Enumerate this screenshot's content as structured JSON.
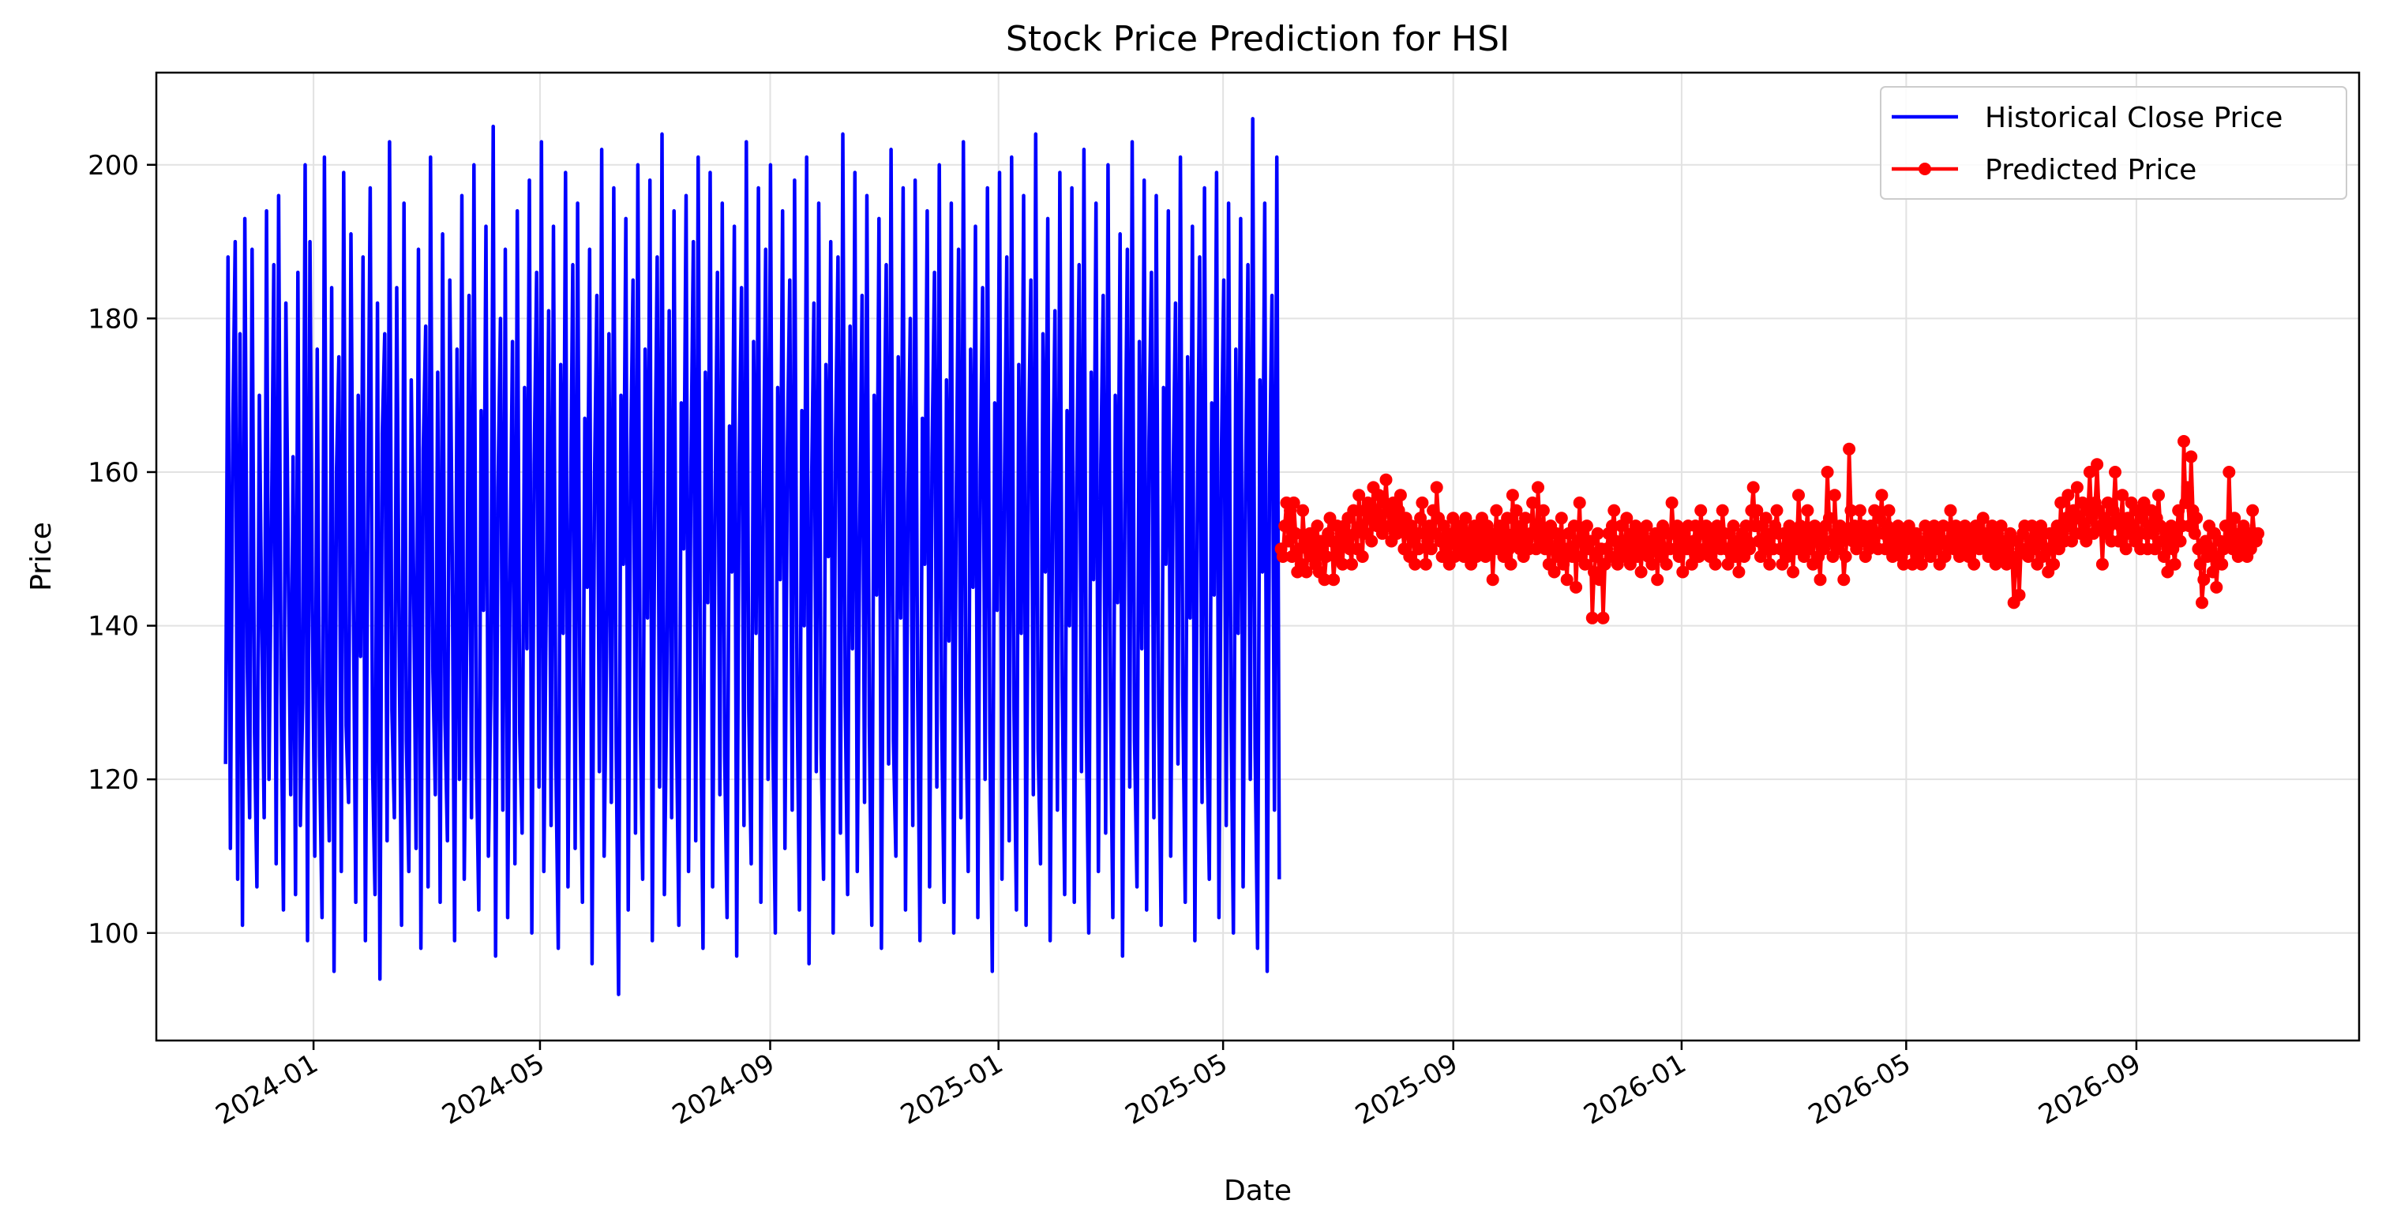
{
  "chart_data": {
    "type": "line",
    "title": "Stock Price Prediction for HSI",
    "xlabel": "Date",
    "ylabel": "Price",
    "xlim": [
      "2023-10-09",
      "2026-12-29"
    ],
    "ylim": [
      86,
      212
    ],
    "grid": true,
    "legend": {
      "placement": "top-right",
      "entries": [
        "Historical Close Price",
        "Predicted Price"
      ]
    },
    "x_ticks": [
      "2024-01",
      "2024-05",
      "2024-09",
      "2025-01",
      "2025-05",
      "2025-09",
      "2026-01",
      "2026-05",
      "2026-09"
    ],
    "x_tick_dates": [
      "2024-01-01",
      "2024-05-01",
      "2024-09-01",
      "2025-01-01",
      "2025-05-01",
      "2025-09-01",
      "2026-01-01",
      "2026-05-01",
      "2026-09-01"
    ],
    "y_ticks": [
      100,
      120,
      140,
      160,
      180,
      200
    ],
    "series": [
      {
        "name": "Historical Close Price",
        "color": "#0000ff",
        "marker": "none",
        "start": "2023-11-15",
        "end": "2025-05-31",
        "frequency": "daily",
        "range": [
          92,
          206
        ],
        "values": [
          122,
          188,
          111,
          166,
          190,
          107,
          178,
          101,
          193,
          135,
          115,
          189,
          126,
          106,
          170,
          140,
          115,
          194,
          120,
          151,
          187,
          109,
          196,
          133,
          103,
          182,
          148,
          118,
          162,
          105,
          186,
          114,
          130,
          200,
          99,
          190,
          142,
          110,
          176,
          123,
          102,
          201,
          131,
          112,
          184,
          95,
          160,
          175,
          108,
          199,
          127,
          117,
          191,
          143,
          104,
          170,
          136,
          188,
          99,
          155,
          197,
          121,
          105,
          182,
          94,
          165,
          178,
          112,
          203,
          129,
          115,
          184,
          138,
          101,
          195,
          125,
          108,
          172,
          146,
          111,
          189,
          98,
          163,
          179,
          106,
          201,
          134,
          118,
          173,
          104,
          191,
          128,
          112,
          185,
          149,
          99,
          176,
          120,
          196,
          107,
          138,
          183,
          115,
          200,
          124,
          103,
          168,
          142,
          192,
          110,
          131,
          205,
          97,
          158,
          180,
          116,
          189,
          102,
          147,
          177,
          109,
          194,
          126,
          113,
          171,
          137,
          198,
          100,
          161,
          186,
          119,
          203,
          108,
          144,
          181,
          114,
          192,
          122,
          98,
          174,
          139,
          199,
          106,
          153,
          187,
          111,
          195,
          130,
          104,
          167,
          145,
          189,
          96,
          159,
          183,
          121,
          202,
          110,
          136,
          178,
          117,
          197,
          125,
          92,
          170,
          148,
          193,
          103,
          162,
          185,
          113,
          200,
          128,
          107,
          176,
          141,
          198,
          99,
          156,
          188,
          119,
          204,
          105,
          133,
          181,
          115,
          194,
          127,
          101,
          169,
          150,
          196,
          108,
          160,
          190,
          112,
          201,
          131,
          98,
          173,
          143,
          199,
          106,
          154,
          186,
          118,
          195,
          123,
          102,
          166,
          147,
          192,
          97,
          161,
          184,
          114,
          203,
          129,
          109,
          177,
          139,
          197,
          104,
          155,
          189,
          120,
          200,
          126,
          100,
          171,
          146,
          194,
          111,
          163,
          185,
          116,
          198,
          132,
          103,
          168,
          140,
          201,
          96,
          157,
          182,
          121,
          195,
          124,
          107,
          174,
          149,
          190,
          100,
          164,
          188,
          113,
          204,
          130,
          105,
          179,
          137,
          199,
          108,
          152,
          183,
          117,
          196,
          127,
          101,
          170,
          144,
          193,
          98,
          159,
          187,
          122,
          202,
          125,
          110,
          175,
          141,
          197,
          103,
          156,
          180,
          114,
          198,
          133,
          99,
          167,
          148,
          194,
          106,
          162,
          186,
          119,
          200,
          128,
          104,
          172,
          138,
          195,
          100,
          154,
          189,
          115,
          203,
          131,
          108,
          176,
          145,
          192,
          102,
          160,
          184,
          120,
          197,
          126,
          95,
          169,
          142,
          199,
          107,
          157,
          188,
          112,
          201,
          129,
          103,
          174,
          139,
          196,
          101,
          163,
          185,
          118,
          204,
          124,
          109,
          178,
          147,
          193,
          99,
          155,
          181,
          116,
          199,
          132,
          105,
          168,
          140,
          197,
          104,
          158,
          187,
          121,
          202,
          127,
          100,
          173,
          146,
          195,
          108,
          161,
          183,
          113,
          200,
          130,
          102,
          170,
          143,
          191,
          97,
          156,
          189,
          119,
          203,
          125,
          106,
          177,
          137,
          198,
          103,
          164,
          186,
          115,
          196,
          128,
          101,
          171,
          148,
          194,
          110,
          159,
          182,
          122,
          201,
          131,
          104,
          175,
          141,
          192,
          99,
          153,
          188,
          117,
          197,
          126,
          107,
          169,
          144,
          199,
          102,
          162,
          185,
          114,
          195,
          129,
          100,
          176,
          139,
          193,
          106,
          157,
          187,
          120,
          206,
          124,
          98,
          172,
          147,
          195,
          95,
          160,
          183,
          116,
          201,
          107
        ]
      },
      {
        "name": "Predicted Price",
        "color": "#ff0000",
        "marker": "circle",
        "start": "2025-06-01",
        "end": "2026-11-05",
        "frequency": "daily",
        "range": [
          140.5,
          164
        ],
        "values": [
          150,
          149,
          153,
          156,
          151,
          155,
          149,
          156,
          152,
          147,
          150,
          148,
          155,
          151,
          147,
          150,
          152,
          149,
          151,
          148,
          153,
          147,
          151,
          150,
          146,
          149,
          152,
          154,
          151,
          146,
          149,
          153,
          150,
          152,
          148,
          153,
          151,
          154,
          150,
          148,
          155,
          152,
          150,
          157,
          153,
          149,
          155,
          152,
          156,
          154,
          151,
          158,
          155,
          153,
          157,
          154,
          152,
          156,
          159,
          155,
          153,
          151,
          156,
          154,
          152,
          155,
          157,
          153,
          150,
          154,
          152,
          149,
          153,
          151,
          148,
          152,
          150,
          154,
          156,
          152,
          148,
          151,
          153,
          150,
          155,
          152,
          158,
          154,
          151,
          149,
          153,
          150,
          152,
          148,
          151,
          154,
          149,
          152,
          150,
          153,
          151,
          149,
          154,
          152,
          150,
          148,
          151,
          153,
          149,
          150,
          152,
          154,
          151,
          149,
          153,
          150,
          152,
          146,
          151,
          155,
          150,
          153,
          151,
          149,
          152,
          154,
          150,
          148,
          157,
          152,
          155,
          151,
          150,
          153,
          149,
          154,
          151,
          150,
          152,
          156,
          152,
          150,
          158,
          153,
          151,
          155,
          150,
          152,
          148,
          153,
          150,
          147,
          152,
          149,
          151,
          154,
          148,
          150,
          146,
          152,
          150,
          149,
          153,
          145,
          151,
          156,
          149,
          152,
          148,
          153,
          150,
          151,
          141,
          147,
          149,
          152,
          146,
          150,
          141,
          148,
          150,
          152,
          149,
          153,
          155,
          151,
          148,
          150,
          153,
          149,
          151,
          154,
          150,
          148,
          152,
          150,
          153,
          149,
          151,
          147,
          152,
          150,
          153,
          149,
          151,
          148,
          150,
          152,
          146,
          151,
          149,
          153,
          150,
          148,
          152,
          150,
          156,
          152,
          150,
          153,
          149,
          151,
          147,
          152,
          150,
          153,
          150,
          148,
          151,
          153,
          150,
          149,
          155,
          152,
          150,
          153,
          151,
          149,
          152,
          150,
          148,
          153,
          151,
          150,
          155,
          152,
          150,
          148,
          152,
          150,
          153,
          149,
          151,
          147,
          150,
          152,
          149,
          153,
          151,
          150,
          155,
          158,
          153,
          155,
          151,
          149,
          153,
          151,
          154,
          150,
          148,
          152,
          150,
          153,
          155,
          152,
          150,
          148,
          152,
          150,
          149,
          153,
          151,
          147,
          152,
          150,
          157,
          153,
          151,
          149,
          152,
          155,
          150,
          152,
          148,
          153,
          151,
          149,
          146,
          152,
          150,
          153,
          160,
          154,
          151,
          149,
          157,
          152,
          150,
          153,
          151,
          146,
          149,
          152,
          163,
          155,
          151,
          153,
          150,
          152,
          155,
          151,
          153,
          149,
          152,
          150,
          153,
          151,
          155,
          152,
          150,
          154,
          157,
          152,
          150,
          153,
          155,
          151,
          149,
          152,
          150,
          153,
          151,
          149,
          148,
          152,
          150,
          153,
          151,
          148,
          150,
          152,
          149,
          151,
          148,
          150,
          153,
          150,
          152,
          149,
          151,
          153,
          150,
          152,
          148,
          151,
          153,
          149,
          151,
          150,
          155,
          152,
          150,
          153,
          151,
          149,
          152,
          150,
          153,
          151,
          149,
          152,
          150,
          148,
          153,
          151,
          150,
          152,
          154,
          150,
          152,
          149,
          151,
          153,
          150,
          148,
          152,
          150,
          153,
          149,
          151,
          148,
          150,
          152,
          149,
          143,
          148,
          151,
          144,
          150,
          152,
          153,
          150,
          149,
          151,
          153,
          150,
          152,
          148,
          151,
          153,
          149,
          152,
          150,
          147,
          152,
          150,
          148,
          151,
          153,
          150,
          156,
          152,
          151,
          154,
          157,
          153,
          151,
          155,
          152,
          158,
          154,
          152,
          156,
          153,
          151,
          155,
          160,
          154,
          152,
          156,
          161,
          155,
          153,
          148,
          154,
          152,
          156,
          153,
          151,
          155,
          160,
          154,
          151,
          153,
          157,
          152,
          150,
          154,
          152,
          156,
          153,
          151,
          155,
          152,
          150,
          154,
          156,
          152,
          150,
          153,
          155,
          152,
          150,
          154,
          157,
          153,
          151,
          149,
          152,
          147,
          151,
          153,
          150,
          148,
          152,
          155,
          151,
          153,
          164,
          156,
          158,
          153,
          162,
          155,
          152,
          154,
          150,
          148,
          143,
          146,
          151,
          149,
          153,
          150,
          147,
          152,
          145,
          149,
          151,
          148,
          150,
          153,
          151,
          160,
          152,
          150,
          154,
          151,
          149,
          152,
          150,
          153,
          151,
          149,
          152,
          150,
          155,
          152,
          151,
          152
        ]
      }
    ]
  }
}
